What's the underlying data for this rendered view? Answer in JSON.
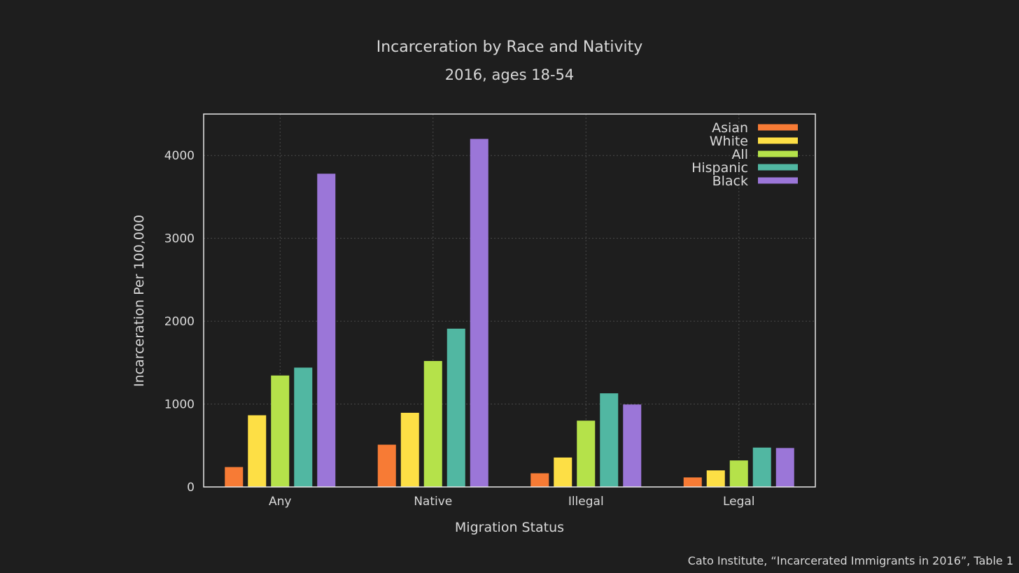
{
  "chart_data": {
    "type": "bar",
    "title": "Incarceration by Race and Nativity",
    "subtitle": "2016, ages 18-54",
    "xlabel": "Migration Status",
    "ylabel": "Incarceration Per 100,000",
    "categories": [
      "Any",
      "Native",
      "Illegal",
      "Legal"
    ],
    "series": [
      {
        "name": "Asian",
        "color": "#f77b35",
        "values": [
          240,
          510,
          165,
          115
        ]
      },
      {
        "name": "White",
        "color": "#fddf45",
        "values": [
          865,
          895,
          355,
          200
        ]
      },
      {
        "name": "All",
        "color": "#b5e24a",
        "values": [
          1345,
          1520,
          800,
          320
        ]
      },
      {
        "name": "Hispanic",
        "color": "#51b7a2",
        "values": [
          1440,
          1910,
          1130,
          475
        ]
      },
      {
        "name": "Black",
        "color": "#9b76d8",
        "values": [
          3780,
          4200,
          995,
          470
        ]
      }
    ],
    "ylim": [
      0,
      4500
    ],
    "yticks": [
      0,
      1000,
      2000,
      3000,
      4000
    ],
    "grid": true,
    "legend_position": "top-right",
    "source": "Cato Institute, “Incarcerated Immigrants in 2016”, Table 1"
  }
}
